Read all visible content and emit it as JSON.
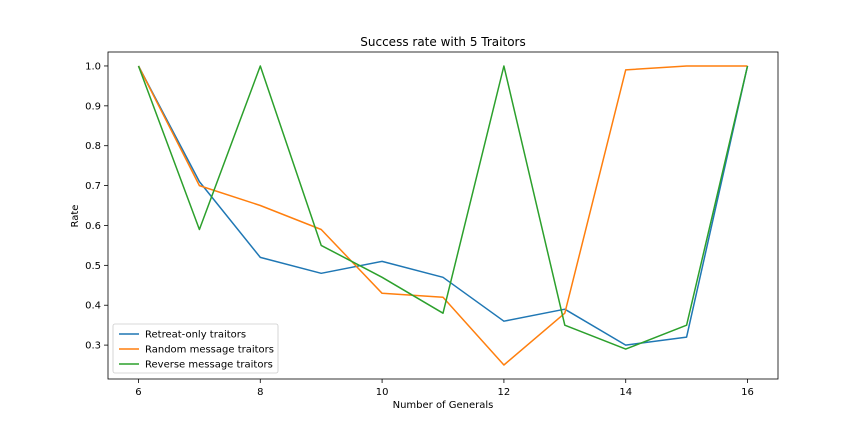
{
  "chart_data": {
    "type": "line",
    "title": "Success rate with 5 Traitors",
    "xlabel": "Number of Generals",
    "ylabel": "Rate",
    "x": [
      6,
      7,
      8,
      9,
      10,
      11,
      12,
      13,
      14,
      15,
      16
    ],
    "xlim": [
      5.5,
      16.5
    ],
    "ylim": [
      0.215,
      1.035
    ],
    "xticks": [
      6,
      8,
      10,
      12,
      14,
      16
    ],
    "yticks": [
      0.3,
      0.4,
      0.5,
      0.6,
      0.7,
      0.8,
      0.9,
      1.0
    ],
    "ytick_labels": [
      "0.3",
      "0.4",
      "0.5",
      "0.6",
      "0.7",
      "0.8",
      "0.9",
      "1.0"
    ],
    "grid": false,
    "legend_position": "lower-left",
    "series": [
      {
        "name": "Retreat-only traitors",
        "color": "#1f77b4",
        "values": [
          1.0,
          0.71,
          0.52,
          0.48,
          0.51,
          0.47,
          0.36,
          0.39,
          0.3,
          0.32,
          1.0
        ]
      },
      {
        "name": "Random message traitors",
        "color": "#ff7f0e",
        "values": [
          1.0,
          0.7,
          0.65,
          0.59,
          0.43,
          0.42,
          0.25,
          0.38,
          0.99,
          1.0,
          1.0
        ]
      },
      {
        "name": "Reverse message traitors",
        "color": "#2ca02c",
        "values": [
          1.0,
          0.59,
          1.0,
          0.55,
          0.47,
          0.38,
          1.0,
          0.35,
          0.29,
          0.35,
          1.0
        ]
      }
    ]
  }
}
